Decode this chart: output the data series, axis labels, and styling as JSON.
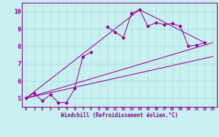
{
  "title": "",
  "xlabel": "Windchill (Refroidissement éolien,°C)",
  "ylabel": "",
  "bg_color": "#c8f0f0",
  "line_color": "#990099",
  "grid_color": "#aadddd",
  "axis_line_color": "#880088",
  "tick_label_color": "#880088",
  "xlabel_color": "#880088",
  "xlim": [
    -0.5,
    23.5
  ],
  "ylim": [
    4.5,
    10.5
  ],
  "yticks": [
    5,
    6,
    7,
    8,
    9,
    10
  ],
  "xticks": [
    0,
    1,
    2,
    3,
    4,
    5,
    6,
    7,
    8,
    9,
    10,
    11,
    12,
    13,
    14,
    15,
    16,
    17,
    18,
    19,
    20,
    21,
    22,
    23
  ],
  "series1_x": [
    0,
    1,
    2,
    3,
    4,
    5,
    6,
    7,
    8,
    9,
    10,
    11,
    12,
    13,
    14,
    15,
    16,
    17,
    18,
    19,
    20,
    21,
    22,
    23
  ],
  "series1_y": [
    5.0,
    5.3,
    4.85,
    5.2,
    4.75,
    4.75,
    5.55,
    7.4,
    7.65,
    null,
    9.1,
    8.8,
    8.5,
    9.9,
    10.1,
    9.15,
    9.35,
    9.25,
    9.3,
    9.15,
    8.0,
    8.05,
    8.2,
    null
  ],
  "line1_x": [
    0,
    23
  ],
  "line1_y": [
    5.0,
    8.2
  ],
  "line2_x": [
    0,
    14,
    22
  ],
  "line2_y": [
    5.0,
    10.1,
    8.2
  ],
  "line3_x": [
    0,
    23
  ],
  "line3_y": [
    5.0,
    7.4
  ]
}
